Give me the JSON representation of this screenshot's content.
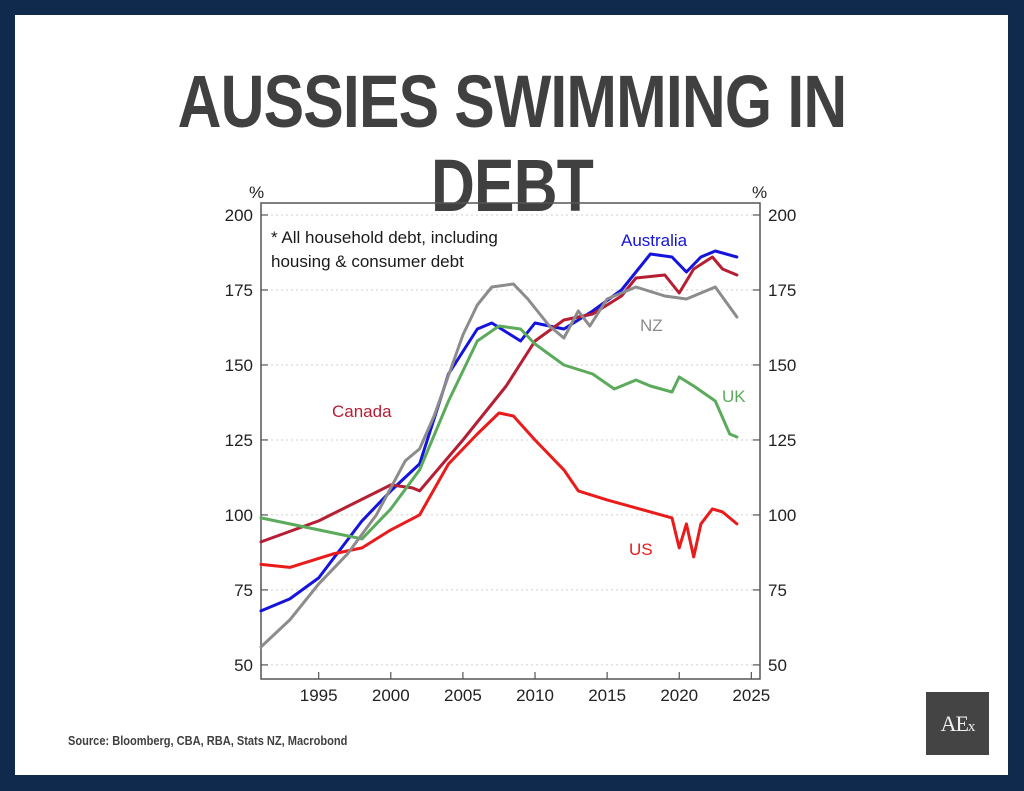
{
  "title": "AUSSIES SWIMMING IN DEBT",
  "source": "Source: Bloomberg, CBA, RBA, Stats NZ, Macrobond",
  "logo": {
    "text_main": "AE",
    "text_small": "x"
  },
  "colors": {
    "border": "#0f2a4d",
    "Australia": "#1414dc",
    "Canada": "#b51e33",
    "US": "#ea1b1b",
    "UK": "#5cab5c",
    "NZ": "#8c8c8c"
  },
  "chart_data": {
    "type": "line",
    "title": "",
    "note_line1": "*  All household debt, including",
    "note_line2": "housing & consumer debt",
    "ylabel_left": "%",
    "ylabel_right": "%",
    "xlabel": "",
    "xlim": [
      1991,
      2025.6
    ],
    "ylim": [
      45.3,
      204
    ],
    "x_ticks": [
      1995,
      2000,
      2005,
      2010,
      2015,
      2020,
      2025
    ],
    "x_tick_labels": [
      "1995",
      "2000",
      "2005",
      "2010",
      "2015",
      "2020",
      "2025"
    ],
    "y_ticks": [
      50,
      75,
      100,
      125,
      150,
      175,
      200
    ],
    "y_tick_labels": [
      "50",
      "75",
      "100",
      "125",
      "150",
      "175",
      "200"
    ],
    "grid": "horizontal dotted",
    "series": [
      {
        "name": "Australia",
        "label": "Australia",
        "x": [
          1991,
          1993,
          1995,
          1998,
          2000,
          2002,
          2004,
          2006,
          2007,
          2009,
          2010,
          2012,
          2014,
          2016,
          2018,
          2019.5,
          2020.5,
          2021.5,
          2022.5,
          2024
        ],
        "y": [
          68,
          72,
          79,
          98,
          108,
          117,
          147,
          162,
          164,
          158,
          164,
          162,
          168,
          175,
          187,
          186,
          181,
          186,
          188,
          186
        ]
      },
      {
        "name": "Canada",
        "label": "Canada",
        "x": [
          1991,
          1995,
          2000,
          2001.5,
          2002,
          2005,
          2008,
          2010,
          2012,
          2014,
          2016,
          2017,
          2019,
          2020,
          2021,
          2022.3,
          2023,
          2024
        ],
        "y": [
          91,
          98,
          110,
          109,
          108,
          125,
          143,
          158,
          165,
          167,
          173,
          179,
          180,
          174,
          182,
          186,
          182,
          180
        ]
      },
      {
        "name": "US",
        "label": "US",
        "x": [
          1991,
          1993,
          1996,
          1998,
          2000,
          2002,
          2004,
          2006,
          2007.5,
          2008.5,
          2010,
          2012,
          2013,
          2015,
          2018,
          2019.5,
          2020,
          2020.5,
          2021,
          2021.5,
          2022.3,
          2023,
          2024
        ],
        "y": [
          83.5,
          82.5,
          87,
          89,
          95,
          100,
          117,
          127,
          134,
          133,
          125,
          115,
          108,
          105,
          101,
          99,
          89,
          97,
          86,
          97,
          102,
          101,
          97
        ]
      },
      {
        "name": "UK",
        "label": "UK",
        "x": [
          1991,
          1993,
          1995,
          1997,
          1998,
          2000,
          2002,
          2004,
          2006,
          2007.5,
          2009,
          2010,
          2012,
          2014,
          2015.5,
          2017,
          2018,
          2019.5,
          2020,
          2021,
          2022.5,
          2023.5,
          2024
        ],
        "y": [
          99,
          97,
          95,
          93,
          92,
          102,
          115,
          138,
          158,
          163,
          162,
          157,
          150,
          147,
          142,
          145,
          143,
          141,
          146,
          143,
          138,
          127,
          126
        ]
      },
      {
        "name": "NZ",
        "label": "NZ",
        "x": [
          1991,
          1993,
          1995,
          1997,
          1999,
          2001,
          2002,
          2003,
          2005,
          2006,
          2007,
          2008.5,
          2009.5,
          2011,
          2012,
          2013,
          2013.8,
          2015,
          2017,
          2019,
          2020.5,
          2021.5,
          2022.5,
          2024
        ],
        "y": [
          56,
          65,
          77,
          87,
          100,
          118,
          122,
          133,
          160,
          170,
          176,
          177,
          172,
          163,
          159,
          168,
          163,
          172,
          176,
          173,
          172,
          174,
          176,
          166
        ]
      }
    ]
  }
}
